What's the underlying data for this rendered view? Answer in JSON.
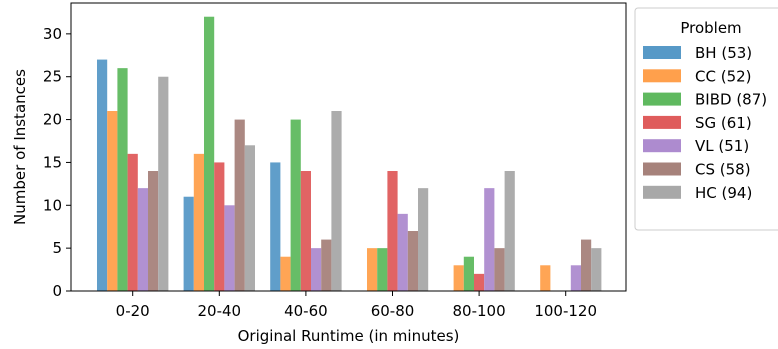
{
  "chart_data": {
    "type": "bar",
    "xlabel": "Original Runtime (in minutes)",
    "ylabel": "Number of Instances",
    "categories": [
      "0-20",
      "20-40",
      "40-60",
      "60-80",
      "80-100",
      "100-120"
    ],
    "ylim": [
      0,
      33.6
    ],
    "yticks": [
      0,
      5,
      10,
      15,
      20,
      25,
      30
    ],
    "grid": false,
    "legend": {
      "title": "Problem",
      "placement": "outside right"
    },
    "series": [
      {
        "name": "BH (53)",
        "color": "#5799c7",
        "values": [
          27,
          11,
          15,
          0,
          0,
          0
        ]
      },
      {
        "name": "CC (52)",
        "color": "#ffa04c",
        "values": [
          21,
          16,
          4,
          5,
          3,
          3
        ]
      },
      {
        "name": "BIBD (87)",
        "color": "#5fb95f",
        "values": [
          26,
          32,
          20,
          5,
          4,
          0
        ]
      },
      {
        "name": "SG (61)",
        "color": "#df5c5c",
        "values": [
          16,
          15,
          14,
          14,
          2,
          0
        ]
      },
      {
        "name": "VL (51)",
        "color": "#ad8bcf",
        "values": [
          12,
          10,
          5,
          9,
          12,
          3
        ]
      },
      {
        "name": "CS (58)",
        "color": "#a6827b",
        "values": [
          14,
          20,
          6,
          7,
          5,
          6
        ]
      },
      {
        "name": "HC (94)",
        "color": "#a8a8a8",
        "values": [
          25,
          17,
          21,
          12,
          14,
          5
        ]
      }
    ]
  }
}
